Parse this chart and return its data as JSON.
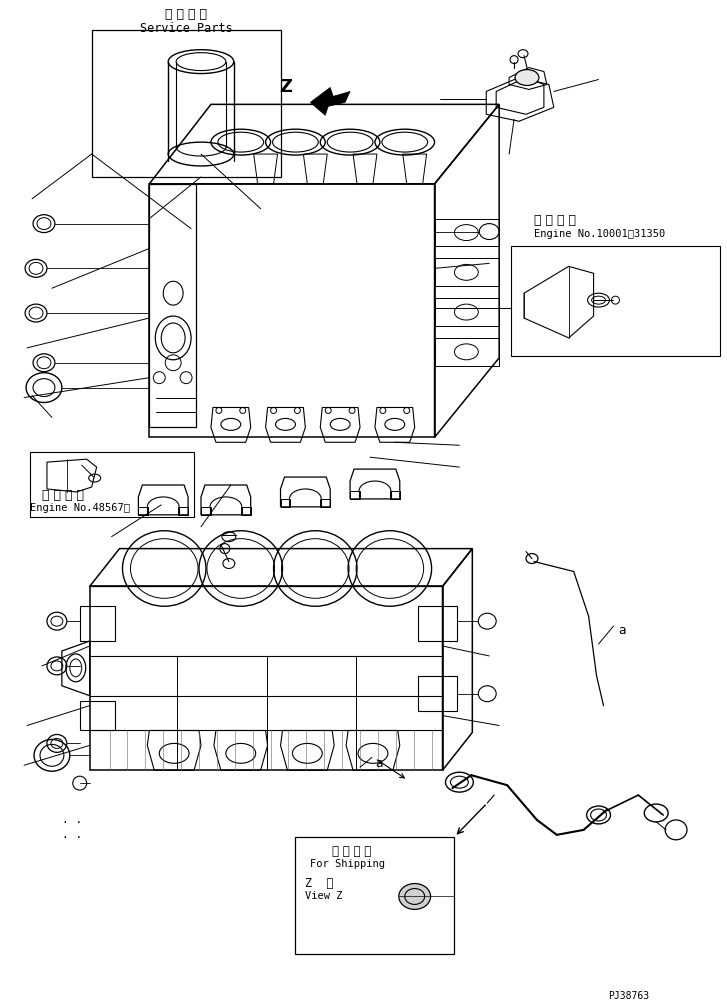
{
  "bg_color": "#ffffff",
  "line_color": "#000000",
  "service_parts_jp": "補 給 専 用",
  "service_parts_en": "Service Parts",
  "shipping_jp": "運 搬 部 品",
  "shipping_en": "For Shipping",
  "shipping_z_jp": "Z  視",
  "shipping_z_en": "View Z",
  "engine1_jp": "適 用 号 機",
  "engine1_en": "Engine No.48567～",
  "engine2_jp": "適 用 号 機",
  "engine2_en": "Engine No.10001～31350",
  "label_a": "a",
  "label_z": "Z",
  "part_number": "PJ38763"
}
